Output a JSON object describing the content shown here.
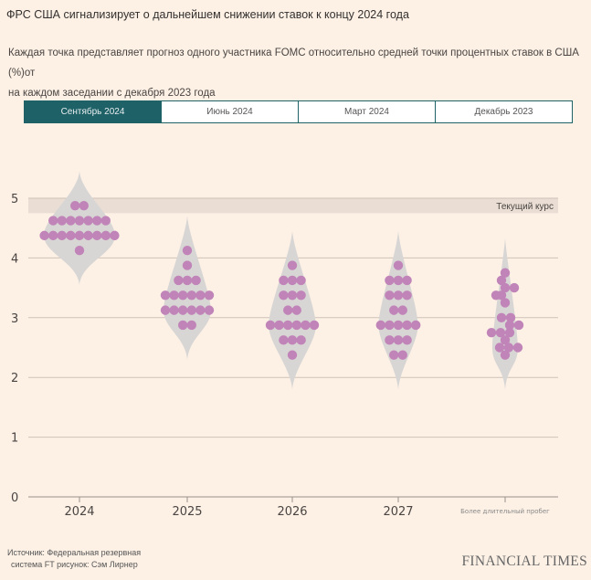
{
  "title": "ФРС США сигнализирует о дальнейшем снижении ставок к концу 2024 года",
  "subtitle_line1": "Каждая точка представляет прогноз одного участника FOMC относительно средней точки процентных ставок в США (%)от",
  "subtitle_line2": "на каждом заседании с декабря 2023 года",
  "tabs": [
    {
      "label": "Сентябрь 2024",
      "active": true
    },
    {
      "label": "Июнь 2024",
      "active": false
    },
    {
      "label": "Март 2024",
      "active": false
    },
    {
      "label": "Декабрь 2023",
      "active": false
    }
  ],
  "colors": {
    "dot": "#c084b8",
    "violin": "#d8d6d4",
    "band": "#e9ddd4",
    "grid": "#cfc3b8",
    "tab_active": "#1e6167"
  },
  "chart_data": {
    "type": "scatter",
    "subtype": "dot-plot",
    "title": "ФРС США сигнализирует о дальнейшем снижении ставок к концу 2024 года",
    "xlabel": "",
    "ylabel": "%",
    "ylim": [
      0,
      5
    ],
    "yticks": [
      0,
      1,
      2,
      3,
      4,
      5
    ],
    "grid": true,
    "categories": [
      "2024",
      "2025",
      "2026",
      "2027",
      "Более длительный пробег"
    ],
    "current_rate_band": {
      "label": "Текущий курс",
      "range": [
        4.75,
        5.0
      ]
    },
    "series": [
      {
        "name": "2024",
        "values": [
          4.875,
          4.875,
          4.625,
          4.625,
          4.625,
          4.625,
          4.625,
          4.625,
          4.625,
          4.375,
          4.375,
          4.375,
          4.375,
          4.375,
          4.375,
          4.375,
          4.375,
          4.375,
          4.125
        ]
      },
      {
        "name": "2025",
        "values": [
          4.125,
          3.875,
          3.625,
          3.625,
          3.625,
          3.375,
          3.375,
          3.375,
          3.375,
          3.375,
          3.375,
          3.125,
          3.125,
          3.125,
          3.125,
          3.125,
          3.125,
          2.875,
          2.875
        ]
      },
      {
        "name": "2026",
        "values": [
          3.875,
          3.625,
          3.625,
          3.625,
          3.375,
          3.375,
          3.375,
          3.125,
          3.125,
          2.875,
          2.875,
          2.875,
          2.875,
          2.875,
          2.875,
          2.625,
          2.625,
          2.625,
          2.375
        ]
      },
      {
        "name": "2027",
        "values": [
          3.875,
          3.625,
          3.625,
          3.625,
          3.375,
          3.375,
          3.375,
          3.125,
          3.125,
          2.875,
          2.875,
          2.875,
          2.875,
          2.875,
          2.625,
          2.625,
          2.625,
          2.375,
          2.375
        ]
      },
      {
        "name": "Более длительный пробег",
        "values": [
          3.75,
          3.625,
          3.5,
          3.5,
          3.375,
          3.375,
          3.25,
          3.0,
          3.0,
          2.875,
          2.875,
          2.75,
          2.75,
          2.75,
          2.625,
          2.5,
          2.5,
          2.5,
          2.375
        ]
      }
    ]
  },
  "footer": {
    "source_line1": "Источник: Федеральная резервная",
    "source_line2": "система FT рисунок: Сэм Лирнер",
    "brand": "FINANCIAL TIMES"
  }
}
